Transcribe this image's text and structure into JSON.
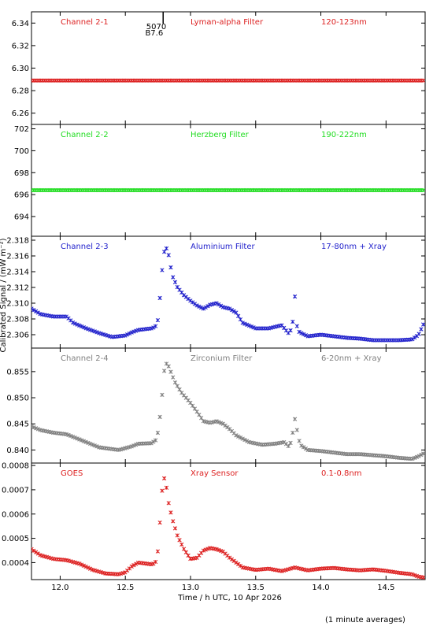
{
  "xlabel": "Time / h UTC, 10 Apr 2026",
  "ylabel": "Calibrated Signal / (mW m⁻²)",
  "footnote": "(1 minute averages)",
  "flare_marker": {
    "time": 12.79,
    "label_top": "5070",
    "label_bottom": "B7.6"
  },
  "x_range": [
    11.78,
    14.8
  ],
  "x_ticks": [
    12.0,
    12.5,
    13.0,
    13.5,
    14.0,
    14.5
  ],
  "x_tick_labels": [
    "12.0",
    "12.5",
    "13.0",
    "13.5",
    "14.0",
    "14.5"
  ],
  "chart_data": [
    {
      "type": "scatter",
      "color": "#dd2222",
      "labels": {
        "channel": "Channel 2-1",
        "filter": "Lyman-alpha Filter",
        "band": "120-123nm"
      },
      "ylim": [
        6.25,
        6.35
      ],
      "y_ticks": [
        6.26,
        6.28,
        6.3,
        6.32,
        6.34
      ],
      "y_tick_labels": [
        "6.26",
        "6.28",
        "6.30",
        "6.32",
        "6.34"
      ],
      "series": [
        {
          "x": [
            11.78,
            12.0,
            12.25,
            12.5,
            12.75,
            13.0,
            13.25,
            13.5,
            13.75,
            14.0,
            14.25,
            14.5,
            14.8
          ],
          "y": [
            6.289,
            6.289,
            6.289,
            6.289,
            6.289,
            6.289,
            6.289,
            6.289,
            6.289,
            6.289,
            6.289,
            6.289,
            6.289
          ]
        }
      ]
    },
    {
      "type": "scatter",
      "color": "#22dd22",
      "labels": {
        "channel": "Channel 2-2",
        "filter": "Herzberg Filter",
        "band": "190-222nm"
      },
      "ylim": [
        692.2,
        702.4
      ],
      "y_ticks": [
        694,
        696,
        698,
        700,
        702
      ],
      "y_tick_labels": [
        "694",
        "696",
        "698",
        "700",
        "702"
      ],
      "series": [
        {
          "x": [
            11.78,
            12.0,
            12.25,
            12.5,
            12.75,
            13.0,
            13.25,
            13.5,
            13.75,
            14.0,
            14.25,
            14.5,
            14.8
          ],
          "y": [
            696.4,
            696.4,
            696.4,
            696.4,
            696.4,
            696.4,
            696.4,
            696.4,
            696.4,
            696.4,
            696.4,
            696.4,
            696.4
          ]
        }
      ]
    },
    {
      "type": "scatter",
      "color": "#2222cc",
      "labels": {
        "channel": "Channel 2-3",
        "filter": "Aluminium Filter",
        "band": "17-80nm + Xray"
      },
      "ylim": [
        2.3043,
        2.3185
      ],
      "y_ticks": [
        2.306,
        2.308,
        2.31,
        2.312,
        2.314,
        2.316,
        2.318
      ],
      "y_tick_labels": [
        "2.306",
        "2.308",
        "2.310",
        "2.312",
        "2.314",
        "2.316",
        "2.318"
      ],
      "series": [
        {
          "x": [
            11.78,
            11.85,
            11.95,
            12.05,
            12.1,
            12.2,
            12.3,
            12.4,
            12.5,
            12.55,
            12.6,
            12.7,
            12.73,
            12.75,
            12.77,
            12.79,
            12.81,
            12.83,
            12.86,
            12.9,
            12.95,
            13.0,
            13.05,
            13.1,
            13.15,
            13.2,
            13.25,
            13.3,
            13.35,
            13.4,
            13.5,
            13.6,
            13.7,
            13.75,
            13.78,
            13.8,
            13.82,
            13.85,
            13.9,
            14.0,
            14.1,
            14.2,
            14.3,
            14.4,
            14.5,
            14.6,
            14.7,
            14.75,
            14.8
          ],
          "y": [
            2.3093,
            2.3086,
            2.3083,
            2.3083,
            2.3075,
            2.3068,
            2.3062,
            2.3057,
            2.3059,
            2.3063,
            2.3066,
            2.3068,
            2.307,
            2.3079,
            2.3115,
            2.316,
            2.3172,
            2.3163,
            2.3135,
            2.312,
            2.311,
            2.3103,
            2.3097,
            2.3093,
            2.3098,
            2.31,
            2.3095,
            2.3093,
            2.3088,
            2.3075,
            2.3068,
            2.3068,
            2.3072,
            2.3062,
            2.3068,
            2.311,
            2.3065,
            2.3062,
            2.3058,
            2.306,
            2.3058,
            2.3056,
            2.3055,
            2.3053,
            2.3053,
            2.3053,
            2.3054,
            2.306,
            2.3078
          ]
        }
      ]
    },
    {
      "type": "scatter",
      "color": "#808080",
      "labels": {
        "channel": "Channel 2-4",
        "filter": "Zirconium Filter",
        "band": "6-20nm + Xray"
      },
      "ylim": [
        0.8375,
        0.8595
      ],
      "y_ticks": [
        0.84,
        0.845,
        0.85,
        0.855
      ],
      "y_tick_labels": [
        "0.840",
        "0.845",
        "0.850",
        "0.855"
      ],
      "series": [
        {
          "x": [
            11.78,
            11.85,
            11.95,
            12.05,
            12.15,
            12.3,
            12.45,
            12.55,
            12.6,
            12.7,
            12.74,
            12.76,
            12.78,
            12.8,
            12.82,
            12.84,
            12.88,
            12.93,
            13.0,
            13.05,
            13.1,
            13.15,
            13.2,
            13.25,
            13.3,
            13.35,
            13.45,
            13.55,
            13.65,
            13.72,
            13.76,
            13.79,
            13.8,
            13.84,
            13.9,
            14.0,
            14.1,
            14.2,
            14.3,
            14.4,
            14.5,
            14.6,
            14.7,
            14.75,
            14.8
          ],
          "y": [
            0.8445,
            0.8438,
            0.8433,
            0.843,
            0.842,
            0.8405,
            0.84,
            0.8407,
            0.8412,
            0.8413,
            0.842,
            0.845,
            0.85,
            0.8555,
            0.8568,
            0.8555,
            0.853,
            0.851,
            0.849,
            0.8473,
            0.8455,
            0.8452,
            0.8455,
            0.845,
            0.844,
            0.8428,
            0.8415,
            0.841,
            0.8412,
            0.8415,
            0.8405,
            0.844,
            0.846,
            0.841,
            0.84,
            0.8398,
            0.8395,
            0.8392,
            0.8392,
            0.839,
            0.8388,
            0.8385,
            0.8383,
            0.8388,
            0.8395
          ]
        }
      ]
    },
    {
      "type": "scatter",
      "color": "#dd2222",
      "labels": {
        "channel": "GOES",
        "filter": "Xray Sensor",
        "band": "0.1-0.8nm"
      },
      "ylim": [
        0.00033,
        0.00081
      ],
      "y_ticks": [
        0.0004,
        0.0005,
        0.0006,
        0.0007,
        0.0008
      ],
      "y_tick_labels": [
        "0.0004",
        "0.0005",
        "0.0006",
        "0.0007",
        "0.0008"
      ],
      "series": [
        {
          "x": [
            11.78,
            11.85,
            11.95,
            12.05,
            12.15,
            12.25,
            12.35,
            12.45,
            12.5,
            12.55,
            12.6,
            12.7,
            12.73,
            12.75,
            12.77,
            12.79,
            12.81,
            12.83,
            12.86,
            12.9,
            12.95,
            13.0,
            13.05,
            13.1,
            13.15,
            13.2,
            13.25,
            13.3,
            13.4,
            13.5,
            13.6,
            13.7,
            13.8,
            13.9,
            14.0,
            14.1,
            14.2,
            14.3,
            14.4,
            14.5,
            14.6,
            14.7,
            14.75,
            14.8
          ],
          "y": [
            0.000455,
            0.00043,
            0.000415,
            0.00041,
            0.000395,
            0.00037,
            0.000355,
            0.000352,
            0.00036,
            0.000385,
            0.0004,
            0.000393,
            0.000398,
            0.00045,
            0.0006,
            0.00076,
            0.00073,
            0.00065,
            0.00058,
            0.00051,
            0.000455,
            0.000415,
            0.00042,
            0.00045,
            0.00046,
            0.000455,
            0.000445,
            0.00042,
            0.00038,
            0.00037,
            0.000375,
            0.000365,
            0.00038,
            0.000368,
            0.000375,
            0.000378,
            0.000372,
            0.000368,
            0.000372,
            0.000366,
            0.000358,
            0.000352,
            0.000342,
            0.000338
          ]
        }
      ]
    }
  ]
}
